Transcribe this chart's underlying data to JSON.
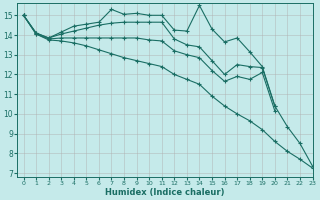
{
  "xlabel": "Humidex (Indice chaleur)",
  "bg_color": "#c5eaea",
  "grid_color": "#b0b0b0",
  "line_color": "#1a6e64",
  "xlim": [
    -0.5,
    23
  ],
  "ylim": [
    6.8,
    15.6
  ],
  "yticks": [
    7,
    8,
    9,
    10,
    11,
    12,
    13,
    14,
    15
  ],
  "xticks": [
    0,
    1,
    2,
    3,
    4,
    5,
    6,
    7,
    8,
    9,
    10,
    11,
    12,
    13,
    14,
    15,
    16,
    17,
    18,
    19,
    20,
    21,
    22,
    23
  ],
  "line1_x": [
    0,
    1,
    2,
    3,
    4,
    5,
    6,
    7,
    8,
    9,
    10,
    11,
    12,
    13,
    14,
    15,
    16,
    17,
    18,
    19,
    20,
    21,
    22,
    23
  ],
  "line1_y": [
    15.0,
    14.1,
    13.85,
    14.15,
    14.45,
    14.55,
    14.65,
    15.3,
    15.05,
    15.1,
    15.0,
    15.0,
    14.25,
    14.2,
    15.5,
    14.3,
    13.65,
    13.85,
    13.15,
    12.4,
    10.4,
    9.35,
    8.5,
    7.35
  ],
  "line2_x": [
    0,
    1,
    2,
    3,
    4,
    5,
    6,
    7,
    8,
    9,
    10,
    11,
    12,
    13,
    14,
    15,
    16,
    17,
    18,
    19,
    20
  ],
  "line2_y": [
    15.0,
    14.1,
    13.85,
    14.05,
    14.2,
    14.35,
    14.5,
    14.6,
    14.65,
    14.65,
    14.65,
    14.65,
    13.8,
    13.5,
    13.4,
    12.7,
    12.0,
    12.5,
    12.4,
    12.35,
    10.4
  ],
  "line3_x": [
    0,
    1,
    2,
    3,
    4,
    5,
    6,
    7,
    8,
    9,
    10,
    11,
    12,
    13,
    14,
    15,
    16,
    17,
    18,
    19,
    20
  ],
  "line3_y": [
    15.0,
    14.05,
    13.8,
    13.85,
    13.85,
    13.85,
    13.85,
    13.85,
    13.85,
    13.85,
    13.75,
    13.7,
    13.2,
    13.0,
    12.85,
    12.2,
    11.65,
    11.9,
    11.75,
    12.1,
    10.15
  ],
  "line4_x": [
    0,
    1,
    2,
    3,
    4,
    5,
    6,
    7,
    8,
    9,
    10,
    11,
    12,
    13,
    14,
    15,
    16,
    17,
    18,
    19,
    20,
    21,
    22,
    23
  ],
  "line4_y": [
    15.0,
    14.05,
    13.75,
    13.7,
    13.6,
    13.45,
    13.25,
    13.05,
    12.85,
    12.7,
    12.55,
    12.4,
    12.0,
    11.75,
    11.5,
    10.9,
    10.4,
    10.0,
    9.65,
    9.2,
    8.6,
    8.1,
    7.7,
    7.25
  ]
}
